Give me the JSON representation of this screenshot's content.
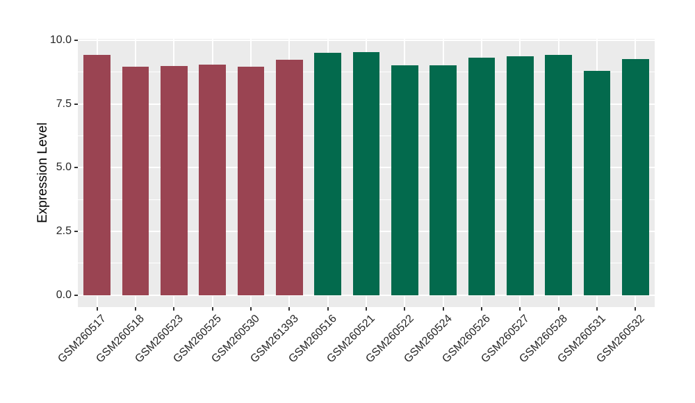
{
  "figure": {
    "background": "#FFFFFF"
  },
  "chart_data": {
    "type": "bar",
    "title": "",
    "xlabel": "",
    "ylabel": "Expression Level",
    "categories": [
      "GSM260517",
      "GSM260518",
      "GSM260523",
      "GSM260525",
      "GSM260530",
      "GSM261393",
      "GSM260516",
      "GSM260521",
      "GSM260522",
      "GSM260524",
      "GSM260526",
      "GSM260527",
      "GSM260528",
      "GSM260531",
      "GSM260532"
    ],
    "values": [
      9.43,
      8.95,
      8.98,
      9.05,
      8.96,
      9.25,
      9.5,
      9.54,
      9.01,
      9.01,
      9.32,
      9.36,
      9.44,
      8.79,
      9.27
    ],
    "bar_groups": [
      0,
      0,
      0,
      0,
      0,
      0,
      1,
      1,
      1,
      1,
      1,
      1,
      1,
      1,
      1
    ],
    "group_colors": [
      "#9A4452",
      "#036A4D"
    ],
    "ylim": [
      0,
      10
    ],
    "yticks": [
      0,
      2.5,
      5,
      7.5,
      10
    ],
    "ytick_labels": [
      "0.0",
      "2.5",
      "5.0",
      "7.5",
      "10.0"
    ],
    "minor_yticks": [
      1.25,
      3.75,
      6.25,
      8.75
    ],
    "x_tick_rotation": 45,
    "grid": true,
    "legend": "none",
    "panel_bg": "#EBEBEB",
    "grid_color": "#FFFFFF",
    "tick_mark_color": "#333333",
    "tick_text_color": "#262626"
  }
}
